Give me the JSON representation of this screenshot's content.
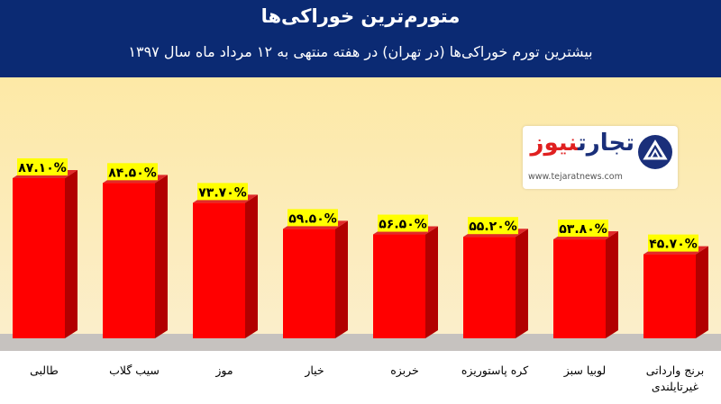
{
  "header": {
    "title": "متورم‌ترین خوراکی‌ها",
    "subtitle": "بیشترین تورم خوراکی‌ها (در تهران) در هفته منتهی به ۱۲ مرداد ماه سال ۱۳۹۷"
  },
  "logo": {
    "brand_main": "تجارت",
    "brand_accent": "نیوز",
    "site": "www.tejaratnews.com"
  },
  "colors": {
    "header_bg": "#0b2a73",
    "plot_bg_top": "#fde9a6",
    "plot_bg_bottom": "#fbeecb",
    "floor": "#c6c2bf",
    "bar_front": "#ff0000",
    "bar_side": "#b20000",
    "bar_top": "#e02a2a",
    "label_bg": "#ffff00"
  },
  "chart_data": {
    "type": "bar",
    "categories": [
      "طالبی",
      "سیب گلاب",
      "موز",
      "خیار",
      "خربزه",
      "کره پاستوریزه",
      "لوبیا سبز",
      "برنج وارداتی غیرتایلندی"
    ],
    "category_lines": [
      [
        "طالبی"
      ],
      [
        "سیب گلاب"
      ],
      [
        "موز"
      ],
      [
        "خیار"
      ],
      [
        "خربزه"
      ],
      [
        "کره پاستوریزه"
      ],
      [
        "لوبیا سبز"
      ],
      [
        "برنج وارداتی",
        "غیرتایلندی"
      ]
    ],
    "values": [
      87.1,
      84.5,
      73.7,
      59.5,
      56.5,
      55.2,
      53.8,
      45.7
    ],
    "value_labels": [
      "۸۷.۱۰%",
      "۸۴.۵۰%",
      "۷۳.۷۰%",
      "۵۹.۵۰%",
      "۵۶.۵۰%",
      "۵۵.۲۰%",
      "۵۳.۸۰%",
      "۴۵.۷۰%"
    ],
    "ylim": [
      0,
      100
    ],
    "grid": false,
    "legend": "none"
  }
}
